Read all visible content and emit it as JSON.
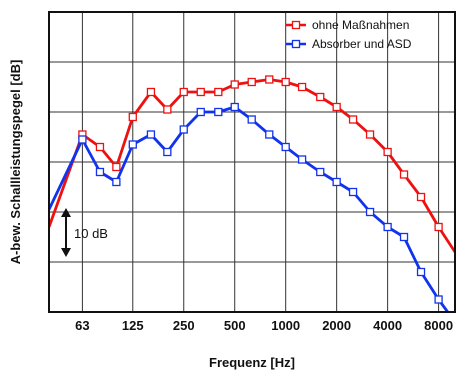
{
  "chart_data": {
    "type": "line",
    "xlabel": "Frequenz [Hz]",
    "ylabel": "A-bew. Schallleistungspegel [dB]",
    "x_scale": "log",
    "x_tick_labels": [
      "63",
      "125",
      "250",
      "500",
      "1000",
      "2000",
      "4000",
      "8000"
    ],
    "x_tick_values": [
      63,
      125,
      250,
      500,
      1000,
      2000,
      4000,
      8000
    ],
    "xlim": [
      40,
      10000
    ],
    "ylim": [
      0,
      60
    ],
    "y_tick_labels": false,
    "grid": true,
    "legend_position": "top-right",
    "scale_annotation": "10 dB",
    "x": [
      40,
      63,
      80,
      100,
      125,
      160,
      200,
      250,
      315,
      400,
      500,
      630,
      800,
      1000,
      1250,
      1600,
      2000,
      2500,
      3150,
      4000,
      5000,
      6300,
      8000,
      10000
    ],
    "series": [
      {
        "name": "ohne Maßnahmen",
        "color": "#ee1111",
        "values": [
          17,
          35.5,
          33,
          29,
          39,
          44,
          40.5,
          44,
          44,
          44,
          45.5,
          46,
          46.5,
          46,
          45,
          43,
          41,
          38.5,
          35.5,
          32,
          27.5,
          23,
          17,
          12
        ]
      },
      {
        "name": "Absorber und ASD",
        "color": "#1133ee",
        "values": [
          20.5,
          34.5,
          28,
          26,
          33.5,
          35.5,
          32,
          36.5,
          40,
          40,
          41,
          38.5,
          35.5,
          33,
          30.5,
          28,
          26,
          24,
          20,
          17,
          15,
          8,
          2.5,
          -2
        ]
      }
    ]
  }
}
